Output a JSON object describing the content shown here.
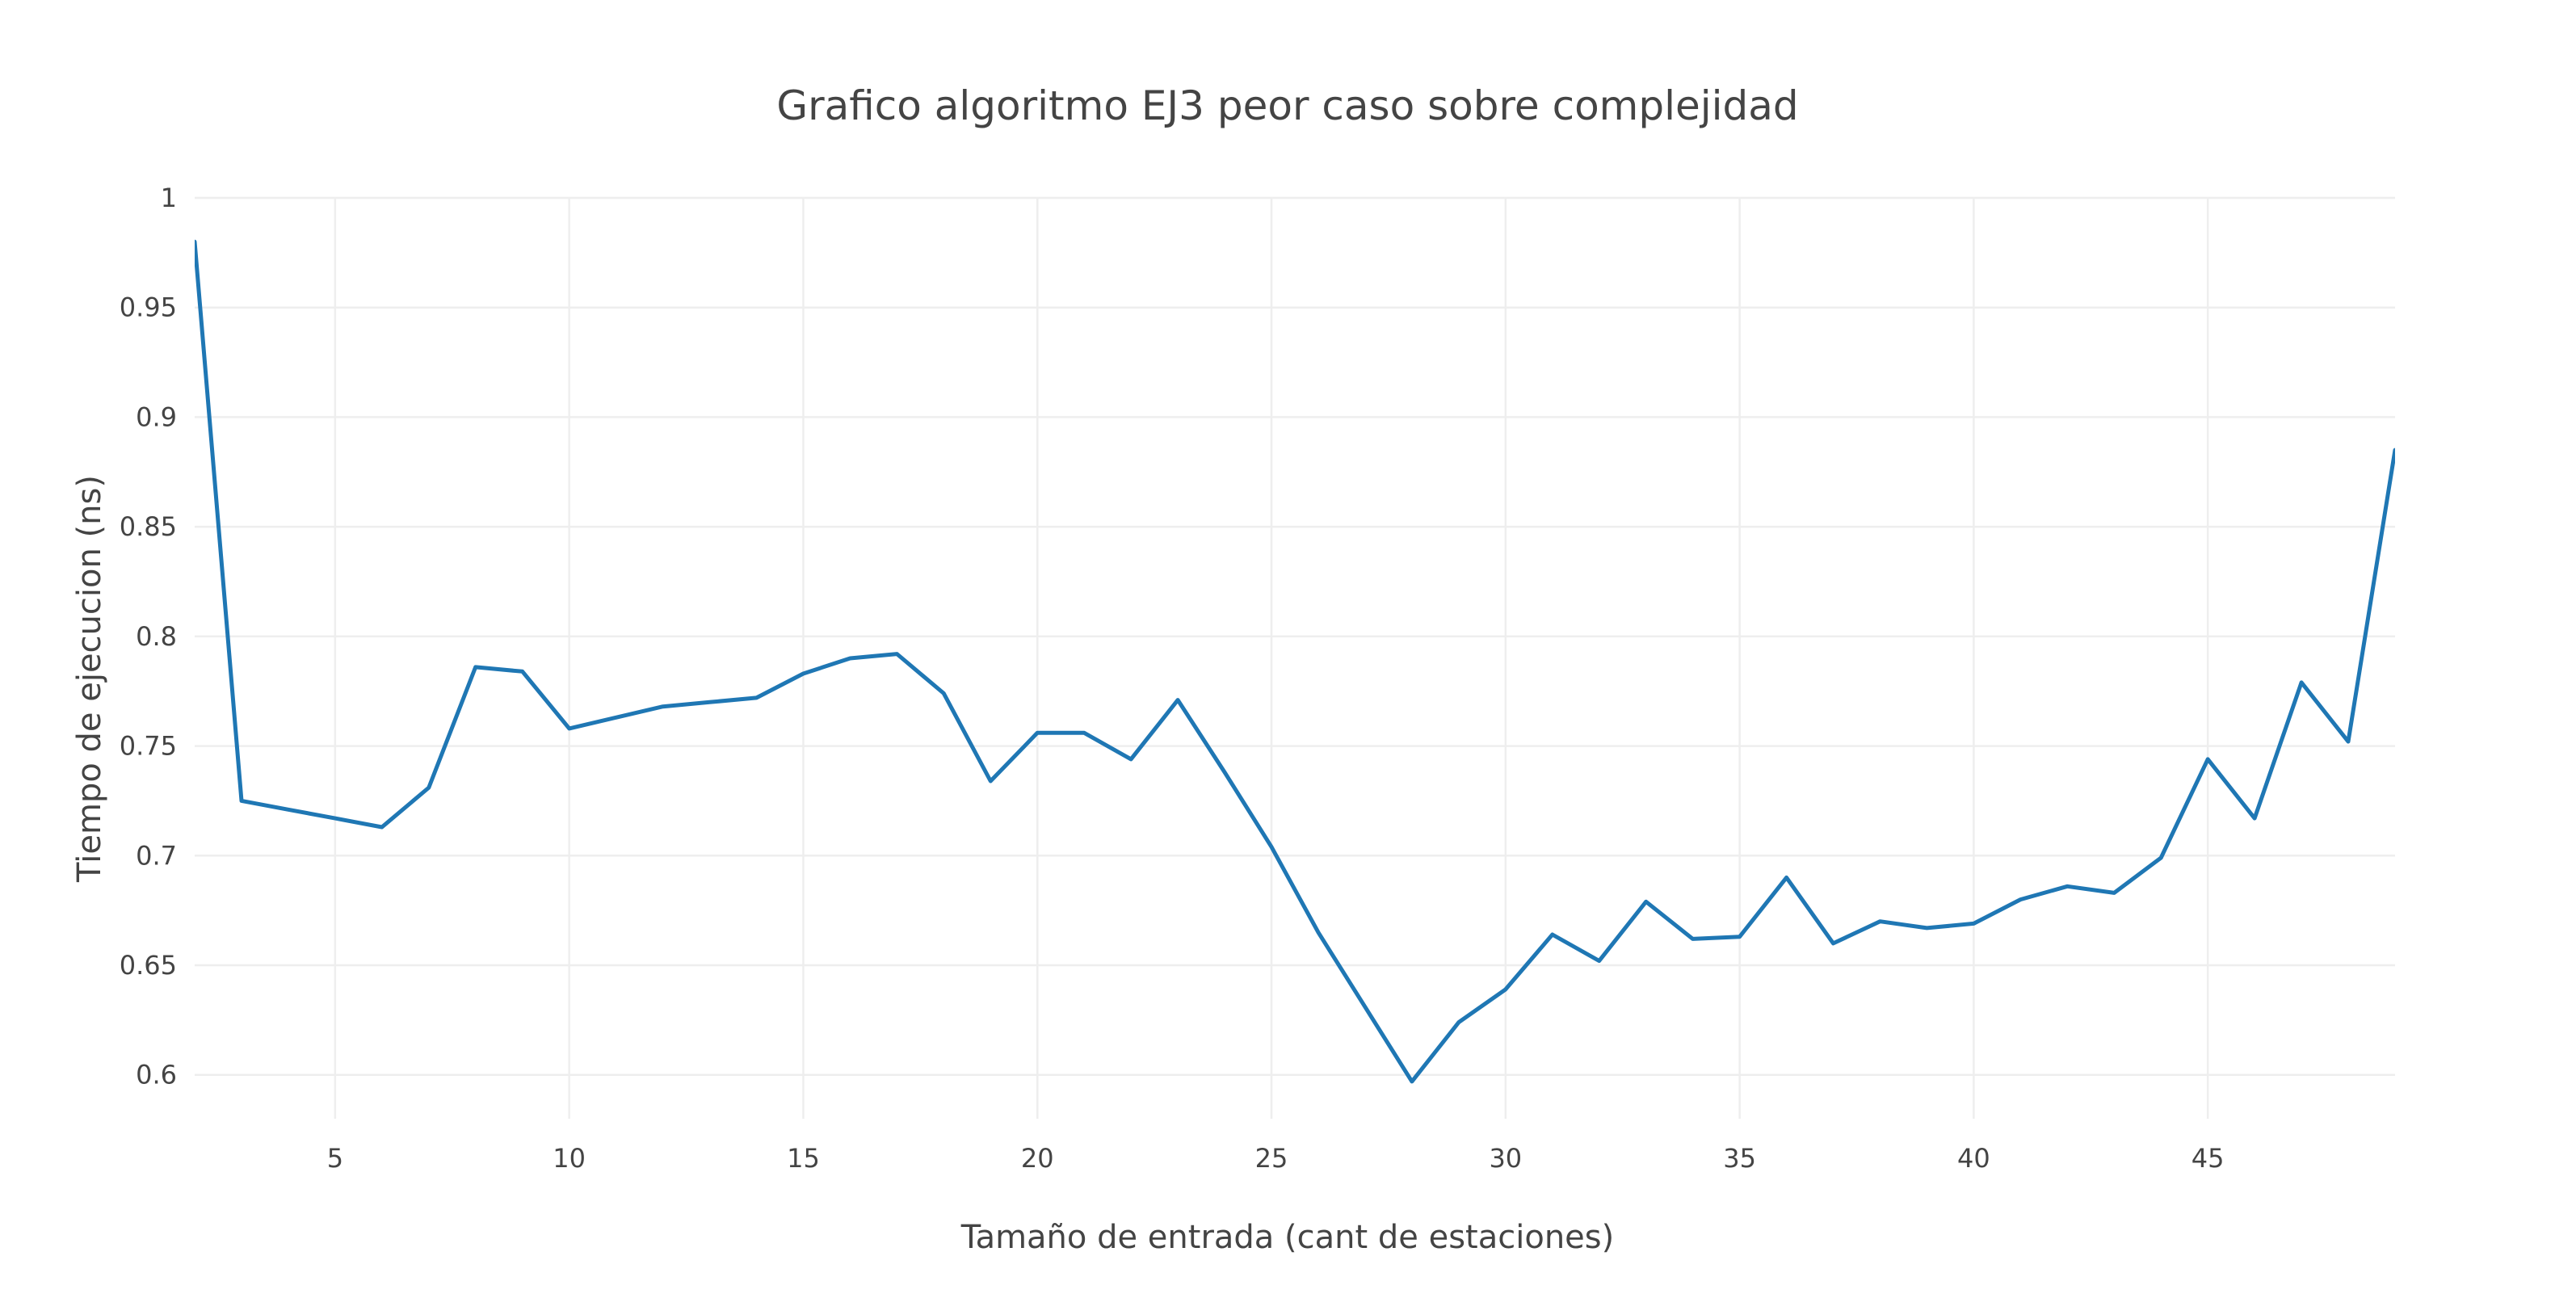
{
  "chart_data": {
    "type": "line",
    "title": "Grafico algoritmo EJ3 peor caso sobre complejidad",
    "xlabel": "Tamaño de entrada (cant de estaciones)",
    "ylabel": "Tiempo de ejecucion (ns)",
    "xlim": [
      2,
      49
    ],
    "ylim": [
      0.58,
      1.0
    ],
    "xticks": [
      5,
      10,
      15,
      20,
      25,
      30,
      35,
      40,
      45
    ],
    "xtick_labels": [
      "5",
      "10",
      "15",
      "20",
      "25",
      "30",
      "35",
      "40",
      "45"
    ],
    "yticks": [
      0.6,
      0.65,
      0.7,
      0.75,
      0.8,
      0.85,
      0.9,
      0.95,
      1
    ],
    "ytick_labels": [
      "0.6",
      "0.65",
      "0.7",
      "0.75",
      "0.8",
      "0.85",
      "0.9",
      "0.95",
      "1"
    ],
    "grid": true,
    "legend": "none",
    "color": "#1f77b4",
    "series": [
      {
        "x": [
          2,
          3,
          4,
          5,
          6,
          7,
          8,
          9,
          10,
          11,
          12,
          13,
          14,
          15,
          16,
          17,
          18,
          19,
          20,
          21,
          22,
          23,
          24,
          25,
          26,
          27,
          28,
          29,
          30,
          31,
          32,
          33,
          34,
          35,
          36,
          37,
          38,
          39,
          40,
          41,
          42,
          43,
          44,
          45,
          46,
          47,
          48,
          49
        ],
        "values": [
          0.98,
          0.725,
          0.721,
          0.717,
          0.713,
          0.731,
          0.786,
          0.784,
          0.758,
          0.763,
          0.768,
          0.77,
          0.772,
          0.783,
          0.79,
          0.792,
          0.774,
          0.734,
          0.756,
          0.756,
          0.744,
          0.771,
          0.738,
          0.704,
          0.665,
          0.631,
          0.597,
          0.624,
          0.639,
          0.664,
          0.652,
          0.679,
          0.662,
          0.663,
          0.69,
          0.66,
          0.67,
          0.667,
          0.669,
          0.68,
          0.686,
          0.683,
          0.699,
          0.744,
          0.717,
          0.779,
          0.752,
          0.885
        ]
      }
    ]
  }
}
